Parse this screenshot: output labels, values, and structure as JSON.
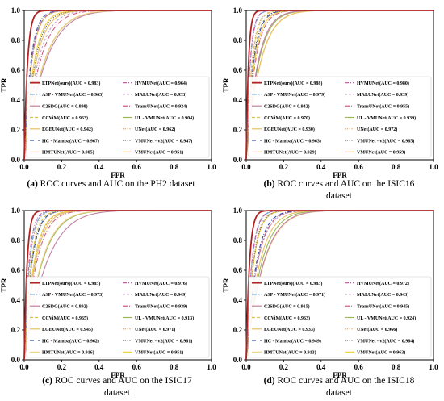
{
  "colors": {
    "LTPNet": "#b22222",
    "ASP": "#6fa8dc",
    "C2SDG": "#c080a0",
    "CCViM": "#d4c24a",
    "EGEUNet": "#e8c060",
    "HCMamba": "#3a4fa0",
    "HMTUNet": "#f2d28a",
    "HVMUNet": "#c060a0",
    "MALUNet": "#c8a0c8",
    "TransUNet": "#d06080",
    "ULVMUNet": "#9ab85a",
    "UNet": "#e6a86a",
    "VMUNetv2": "#666666",
    "VMUNet": "#f0d040"
  },
  "panels": [
    {
      "caption_letter": "(a)",
      "caption_text": "ROC curves and AUC on the PH2 dataset",
      "caption_line2": "",
      "chart_data": {
        "type": "line",
        "title": "",
        "xlabel": "FPR",
        "ylabel": "TPR",
        "xlim": [
          0,
          1
        ],
        "ylim": [
          0,
          1
        ],
        "xticks": [
          "0.0",
          "0.2",
          "0.4",
          "0.6",
          "0.8",
          "1.0"
        ],
        "yticks": [
          "0.0",
          "0.2",
          "0.4",
          "0.6",
          "0.8",
          "1.0"
        ],
        "legend_position": "lower-center",
        "series": [
          {
            "name": "LTPNet(ours)(AUC = 0.983)",
            "key": "LTPNet",
            "auc": 0.983
          },
          {
            "name": "ASP - VMUNet(AUC = 0.963)",
            "key": "ASP",
            "auc": 0.963
          },
          {
            "name": "C2SDG(AUC = 0.898)",
            "key": "C2SDG",
            "auc": 0.898
          },
          {
            "name": "CCViM(AUC = 0.963)",
            "key": "CCViM",
            "auc": 0.963
          },
          {
            "name": "EGEUNet(AUC = 0.942)",
            "key": "EGEUNet",
            "auc": 0.942
          },
          {
            "name": "HC - Mamba(AUC = 0.967)",
            "key": "HCMamba",
            "auc": 0.967
          },
          {
            "name": "HMTUNet(AUC = 0.905)",
            "key": "HMTUNet",
            "auc": 0.905
          },
          {
            "name": "HVMUNet(AUC = 0.964)",
            "key": "HVMUNet",
            "auc": 0.964
          },
          {
            "name": "MALUNet(AUC = 0.933)",
            "key": "MALUNet",
            "auc": 0.933
          },
          {
            "name": "TransUNet(AUC = 0.924)",
            "key": "TransUNet",
            "auc": 0.924
          },
          {
            "name": "UL - VMUNet(AUC = 0.904)",
            "key": "ULVMUNet",
            "auc": 0.904
          },
          {
            "name": "UNet(AUC = 0.962)",
            "key": "UNet",
            "auc": 0.962
          },
          {
            "name": "VMUNet - v2(AUC = 0.947)",
            "key": "VMUNetv2",
            "auc": 0.947
          },
          {
            "name": "VMUNet(AUC = 0.951)",
            "key": "VMUNet",
            "auc": 0.951
          }
        ]
      }
    },
    {
      "caption_letter": "(b)",
      "caption_text": "ROC curves and AUC on the ISIC16",
      "caption_line2": "dataset",
      "chart_data": {
        "type": "line",
        "title": "",
        "xlabel": "FPR",
        "ylabel": "TPR",
        "xlim": [
          0,
          1
        ],
        "ylim": [
          0,
          1
        ],
        "xticks": [
          "0.0",
          "0.2",
          "0.4",
          "0.6",
          "0.8",
          "1.0"
        ],
        "yticks": [
          "0.0",
          "0.2",
          "0.4",
          "0.6",
          "0.8",
          "1.0"
        ],
        "legend_position": "lower-center",
        "series": [
          {
            "name": "LTPNet(ours)(AUC = 0.988)",
            "key": "LTPNet",
            "auc": 0.988
          },
          {
            "name": "ASP - VMUNet(AUC = 0.979)",
            "key": "ASP",
            "auc": 0.979
          },
          {
            "name": "C2SDG(AUC = 0.942)",
            "key": "C2SDG",
            "auc": 0.942
          },
          {
            "name": "CCViM(AUC = 0.970)",
            "key": "CCViM",
            "auc": 0.97
          },
          {
            "name": "EGEUNet(AUC = 0.930)",
            "key": "EGEUNet",
            "auc": 0.93
          },
          {
            "name": "HC - Mamba(AUC = 0.963)",
            "key": "HCMamba",
            "auc": 0.963
          },
          {
            "name": "HMTUNet(AUC = 0.929)",
            "key": "HMTUNet",
            "auc": 0.929
          },
          {
            "name": "HVMUNet(AUC = 0.980)",
            "key": "HVMUNet",
            "auc": 0.98
          },
          {
            "name": "MALUNet(AUC = 0.939)",
            "key": "MALUNet",
            "auc": 0.939
          },
          {
            "name": "TransUNet(AUC = 0.955)",
            "key": "TransUNet",
            "auc": 0.955
          },
          {
            "name": "UL - VMUNet(AUC = 0.939)",
            "key": "ULVMUNet",
            "auc": 0.939
          },
          {
            "name": "UNet(AUC = 0.972)",
            "key": "UNet",
            "auc": 0.972
          },
          {
            "name": "VMUNet - v2(AUC = 0.965)",
            "key": "VMUNetv2",
            "auc": 0.965
          },
          {
            "name": "VMUNet(AUC = 0.959)",
            "key": "VMUNet",
            "auc": 0.959
          }
        ]
      }
    },
    {
      "caption_letter": "(c)",
      "caption_text": "ROC curves and AUC on the ISIC17",
      "caption_line2": "dataset",
      "chart_data": {
        "type": "line",
        "title": "",
        "xlabel": "FPR",
        "ylabel": "TPR",
        "xlim": [
          0,
          1
        ],
        "ylim": [
          0,
          1
        ],
        "xticks": [
          "0.0",
          "0.2",
          "0.4",
          "0.6",
          "0.8",
          "1.0"
        ],
        "yticks": [
          "0.0",
          "0.2",
          "0.4",
          "0.6",
          "0.8",
          "1.0"
        ],
        "legend_position": "lower-center",
        "series": [
          {
            "name": "LTPNet(ours)(AUC = 0.985)",
            "key": "LTPNet",
            "auc": 0.985
          },
          {
            "name": "ASP - VMUNet(AUC = 0.973)",
            "key": "ASP",
            "auc": 0.973
          },
          {
            "name": "C2SDG(AUC = 0.892)",
            "key": "C2SDG",
            "auc": 0.892
          },
          {
            "name": "CCViM(AUC = 0.965)",
            "key": "CCViM",
            "auc": 0.965
          },
          {
            "name": "EGEUNet(AUC = 0.945)",
            "key": "EGEUNet",
            "auc": 0.945
          },
          {
            "name": "HC - Mamba(AUC = 0.962)",
            "key": "HCMamba",
            "auc": 0.962
          },
          {
            "name": "HMTUNet(AUC = 0.916)",
            "key": "HMTUNet",
            "auc": 0.916
          },
          {
            "name": "HVMUNet(AUC = 0.976)",
            "key": "HVMUNet",
            "auc": 0.976
          },
          {
            "name": "MALUNet(AUC = 0.949)",
            "key": "MALUNet",
            "auc": 0.949
          },
          {
            "name": "TransUNet(AUC = 0.939)",
            "key": "TransUNet",
            "auc": 0.939
          },
          {
            "name": "UL - VMUNet(AUC = 0.913)",
            "key": "ULVMUNet",
            "auc": 0.913
          },
          {
            "name": "UNet(AUC = 0.971)",
            "key": "UNet",
            "auc": 0.971
          },
          {
            "name": "VMUNet - v2(AUC = 0.961)",
            "key": "VMUNetv2",
            "auc": 0.961
          },
          {
            "name": "VMUNet(AUC = 0.951)",
            "key": "VMUNet",
            "auc": 0.951
          }
        ]
      }
    },
    {
      "caption_letter": "(d)",
      "caption_text": "ROC curves and AUC on the ISIC18",
      "caption_line2": "dataset",
      "chart_data": {
        "type": "line",
        "title": "",
        "xlabel": "FPR",
        "ylabel": "TPR",
        "xlim": [
          0,
          1
        ],
        "ylim": [
          0,
          1
        ],
        "xticks": [
          "0.0",
          "0.2",
          "0.4",
          "0.6",
          "0.8",
          "1.0"
        ],
        "yticks": [
          "0.0",
          "0.2",
          "0.4",
          "0.6",
          "0.8",
          "1.0"
        ],
        "legend_position": "lower-center",
        "series": [
          {
            "name": "LTPNet(ours)(AUC = 0.983)",
            "key": "LTPNet",
            "auc": 0.983
          },
          {
            "name": "ASP - VMUNet(AUC = 0.971)",
            "key": "ASP",
            "auc": 0.971
          },
          {
            "name": "C2SDG(AUC = 0.915)",
            "key": "C2SDG",
            "auc": 0.915
          },
          {
            "name": "CCViM(AUC = 0.963)",
            "key": "CCViM",
            "auc": 0.963
          },
          {
            "name": "EGEUNet(AUC = 0.933)",
            "key": "EGEUNet",
            "auc": 0.933
          },
          {
            "name": "HC - Mamba(AUC = 0.949)",
            "key": "HCMamba",
            "auc": 0.949
          },
          {
            "name": "HMTUNet(AUC = 0.913)",
            "key": "HMTUNet",
            "auc": 0.913
          },
          {
            "name": "HVMUNet(AUC = 0.972)",
            "key": "HVMUNet",
            "auc": 0.972
          },
          {
            "name": "MALUNet(AUC = 0.943)",
            "key": "MALUNet",
            "auc": 0.943
          },
          {
            "name": "TransUNet(AUC = 0.945)",
            "key": "TransUNet",
            "auc": 0.945
          },
          {
            "name": "UL - VMUNet(AUC = 0.924)",
            "key": "ULVMUNet",
            "auc": 0.924
          },
          {
            "name": "UNet(AUC = 0.966)",
            "key": "UNet",
            "auc": 0.966
          },
          {
            "name": "VMUNet - v2(AUC = 0.964)",
            "key": "VMUNetv2",
            "auc": 0.964
          },
          {
            "name": "VMUNet(AUC = 0.963)",
            "key": "VMUNet",
            "auc": 0.963
          }
        ]
      }
    }
  ]
}
